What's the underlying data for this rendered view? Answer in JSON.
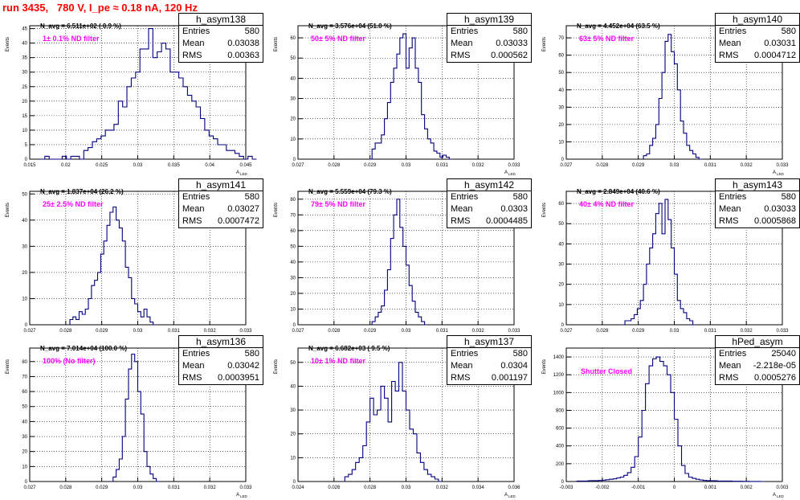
{
  "title": "run 3435,   780 V, I_pe ≈ 0.18 nA, 120 Hz",
  "axis": {
    "y_label": "Events",
    "x_label": "A",
    "x_sub": "LED"
  },
  "line_color": "#000080",
  "label_color": "#ff00ff",
  "title_color": "#ff0000",
  "stat_labels": {
    "entries": "Entries",
    "mean": "Mean",
    "rms": "RMS"
  },
  "chart_data": [
    {
      "type": "bar",
      "name": "h_asym138",
      "n_avg": "N_avg = 6.511e+02 ( 0.9 %)",
      "filter": "1± 0.1% ND filter",
      "stats": {
        "entries": "580",
        "mean": "0.03038",
        "rms": "0.00363"
      },
      "xlim": [
        0.015,
        0.045
      ],
      "ylim": [
        0,
        46
      ],
      "xticks": [
        "0.015",
        "0.02",
        "0.025",
        "0.03",
        "0.035",
        "0.04",
        "0.045"
      ],
      "yticks": [
        "0",
        "5",
        "10",
        "15",
        "20",
        "25",
        "30",
        "35",
        "40",
        "45"
      ],
      "bin_start": 0.0165,
      "bin_width": 0.0006,
      "values": [
        0,
        1,
        0,
        0,
        0,
        1,
        0,
        1,
        1,
        0,
        3,
        4,
        6,
        7,
        8,
        10,
        10,
        12,
        20,
        18,
        25,
        28,
        30,
        38,
        38,
        45,
        35,
        37,
        40,
        38,
        30,
        30,
        28,
        25,
        22,
        20,
        18,
        14,
        10,
        8,
        7,
        5,
        5,
        3,
        3,
        2,
        1,
        0,
        1,
        0
      ]
    },
    {
      "type": "bar",
      "name": "h_asym139",
      "n_avg": "N_avg = 3.576e+04 (51.0 %)",
      "filter": "50± 5% ND filter",
      "stats": {
        "entries": "580",
        "mean": "0.03033",
        "rms": "0.000562"
      },
      "xlim": [
        0.0265,
        0.0335
      ],
      "ylim": [
        0,
        66
      ],
      "xticks": [
        "0.027",
        "0.028",
        "0.029",
        "0.03",
        "0.031",
        "0.032",
        "0.033"
      ],
      "yticks": [
        "0",
        "10",
        "20",
        "30",
        "40",
        "50",
        "60"
      ],
      "bin_start": 0.0288,
      "bin_width": 0.0001,
      "values": [
        0,
        5,
        8,
        8,
        12,
        20,
        28,
        38,
        45,
        52,
        60,
        62,
        45,
        55,
        60,
        45,
        38,
        22,
        15,
        10,
        8,
        4,
        3,
        1,
        2,
        1,
        0
      ]
    },
    {
      "type": "bar",
      "name": "h_asym140",
      "n_avg": "N_avg = 4.452e+04 (63.5 %)",
      "filter": "63± 5% ND filter",
      "stats": {
        "entries": "580",
        "mean": "0.03031",
        "rms": "0.0004712"
      },
      "xlim": [
        0.0265,
        0.0335
      ],
      "ylim": [
        0,
        77
      ],
      "xticks": [
        "0.027",
        "0.028",
        "0.029",
        "0.03",
        "0.031",
        "0.032",
        "0.033"
      ],
      "yticks": [
        "0",
        "10",
        "20",
        "30",
        "40",
        "50",
        "60",
        "70"
      ],
      "bin_start": 0.029,
      "bin_width": 0.0001,
      "values": [
        2,
        3,
        8,
        12,
        20,
        35,
        50,
        68,
        72,
        62,
        55,
        40,
        22,
        15,
        8,
        5,
        3,
        1,
        0
      ]
    },
    {
      "type": "bar",
      "name": "h_asym141",
      "n_avg": "N_avg = 1.837e+04 (26.2 %)",
      "filter": "25± 2.5% ND filter",
      "stats": {
        "entries": "580",
        "mean": "0.03027",
        "rms": "0.0007472"
      },
      "xlim": [
        0.0265,
        0.0335
      ],
      "ylim": [
        0,
        51
      ],
      "xticks": [
        "0.027",
        "0.028",
        "0.029",
        "0.03",
        "0.031",
        "0.032",
        "0.033"
      ],
      "yticks": [
        "0",
        "10",
        "20",
        "30",
        "40",
        "50"
      ],
      "bin_start": 0.0278,
      "bin_width": 0.0001,
      "values": [
        2,
        3,
        2,
        5,
        4,
        6,
        10,
        15,
        17,
        20,
        27,
        32,
        38,
        43,
        45,
        40,
        37,
        32,
        22,
        18,
        10,
        8,
        5,
        3,
        6,
        3,
        1,
        0
      ]
    },
    {
      "type": "bar",
      "name": "h_asym142",
      "n_avg": "N_avg = 5.559e+04 (79.3 %)",
      "filter": "79± 5% ND filter",
      "stats": {
        "entries": "580",
        "mean": "0.0303",
        "rms": "0.0004485"
      },
      "xlim": [
        0.0265,
        0.0335
      ],
      "ylim": [
        0,
        85
      ],
      "xticks": [
        "0.027",
        "0.028",
        "0.029",
        "0.03",
        "0.031",
        "0.032",
        "0.033"
      ],
      "yticks": [
        "0",
        "10",
        "20",
        "30",
        "40",
        "50",
        "60",
        "70",
        "80"
      ],
      "bin_start": 0.0289,
      "bin_width": 0.0001,
      "values": [
        2,
        5,
        8,
        12,
        22,
        35,
        55,
        70,
        80,
        62,
        50,
        38,
        25,
        15,
        8,
        5,
        2,
        0
      ]
    },
    {
      "type": "bar",
      "name": "h_asym143",
      "n_avg": "N_avg = 2.849e+04 (40.6 %)",
      "filter": "40± 4% ND filter",
      "stats": {
        "entries": "580",
        "mean": "0.03033",
        "rms": "0.0005868"
      },
      "xlim": [
        0.0265,
        0.0335
      ],
      "ylim": [
        0,
        66
      ],
      "xticks": [
        "0.027",
        "0.028",
        "0.029",
        "0.03",
        "0.031",
        "0.032",
        "0.033"
      ],
      "yticks": [
        "0",
        "10",
        "20",
        "30",
        "40",
        "50",
        "60"
      ],
      "bin_start": 0.0283,
      "bin_width": 0.0001,
      "values": [
        0,
        2,
        2,
        3,
        5,
        8,
        12,
        20,
        30,
        38,
        45,
        55,
        60,
        45,
        62,
        52,
        38,
        25,
        12,
        8,
        6,
        3,
        2,
        0
      ]
    },
    {
      "type": "bar",
      "name": "h_asym136",
      "n_avg": "N_avg = 7.014e+04 (100.0 %)",
      "filter": "100% (No filter)",
      "stats": {
        "entries": "580",
        "mean": "0.03042",
        "rms": "0.0003951"
      },
      "xlim": [
        0.0265,
        0.0335
      ],
      "ylim": [
        0,
        89
      ],
      "xticks": [
        "0.027",
        "0.028",
        "0.029",
        "0.03",
        "0.031",
        "0.032",
        "0.033"
      ],
      "yticks": [
        "0",
        "10",
        "20",
        "30",
        "40",
        "50",
        "60",
        "70",
        "80"
      ],
      "bin_start": 0.0292,
      "bin_width": 0.0001,
      "values": [
        3,
        8,
        15,
        30,
        55,
        75,
        85,
        80,
        60,
        45,
        20,
        10,
        5,
        2,
        0
      ]
    },
    {
      "type": "bar",
      "name": "h_asym137",
      "n_avg": "N_avg = 6.682e+03 ( 9.5 %)",
      "filter": "10± 1% ND filter",
      "stats": {
        "entries": "580",
        "mean": "0.0304",
        "rms": "0.001197"
      },
      "xlim": [
        0.024,
        0.036
      ],
      "ylim": [
        0,
        56
      ],
      "xticks": [
        "0.024",
        "0.026",
        "0.028",
        "0.03",
        "0.032",
        "0.034",
        "0.036"
      ],
      "yticks": [
        "0",
        "10",
        "20",
        "30",
        "40",
        "50"
      ],
      "bin_start": 0.0266,
      "bin_width": 0.0002,
      "values": [
        2,
        3,
        5,
        8,
        10,
        15,
        25,
        35,
        28,
        30,
        40,
        35,
        25,
        42,
        38,
        50,
        38,
        30,
        22,
        20,
        12,
        8,
        5,
        3,
        2,
        1,
        0
      ]
    },
    {
      "type": "bar",
      "name": "hPed_asym",
      "filter": "Shutter Closed",
      "stats": {
        "entries": "25040",
        "mean": "-2.218e-05",
        "rms": "0.0005276"
      },
      "xlim": [
        -0.003,
        0.003
      ],
      "ylim": [
        0,
        1500
      ],
      "xticks": [
        "-0.003",
        "-0.002",
        "-0.001",
        "0",
        "0.001",
        "0.002",
        "0.003"
      ],
      "yticks": [
        "0",
        "200",
        "400",
        "600",
        "800",
        "1000",
        "1200",
        "1400"
      ],
      "bin_start": -0.0027,
      "bin_width": 0.0001,
      "values": [
        5,
        5,
        5,
        8,
        10,
        10,
        12,
        15,
        20,
        25,
        30,
        40,
        50,
        70,
        100,
        160,
        280,
        500,
        800,
        1100,
        1300,
        1380,
        1400,
        1350,
        1300,
        1200,
        1000,
        700,
        400,
        180,
        90,
        50,
        35,
        25,
        18,
        12,
        10,
        8,
        8,
        5,
        5,
        5,
        5,
        3,
        3,
        3,
        2,
        2,
        1,
        1,
        1,
        0
      ]
    }
  ]
}
